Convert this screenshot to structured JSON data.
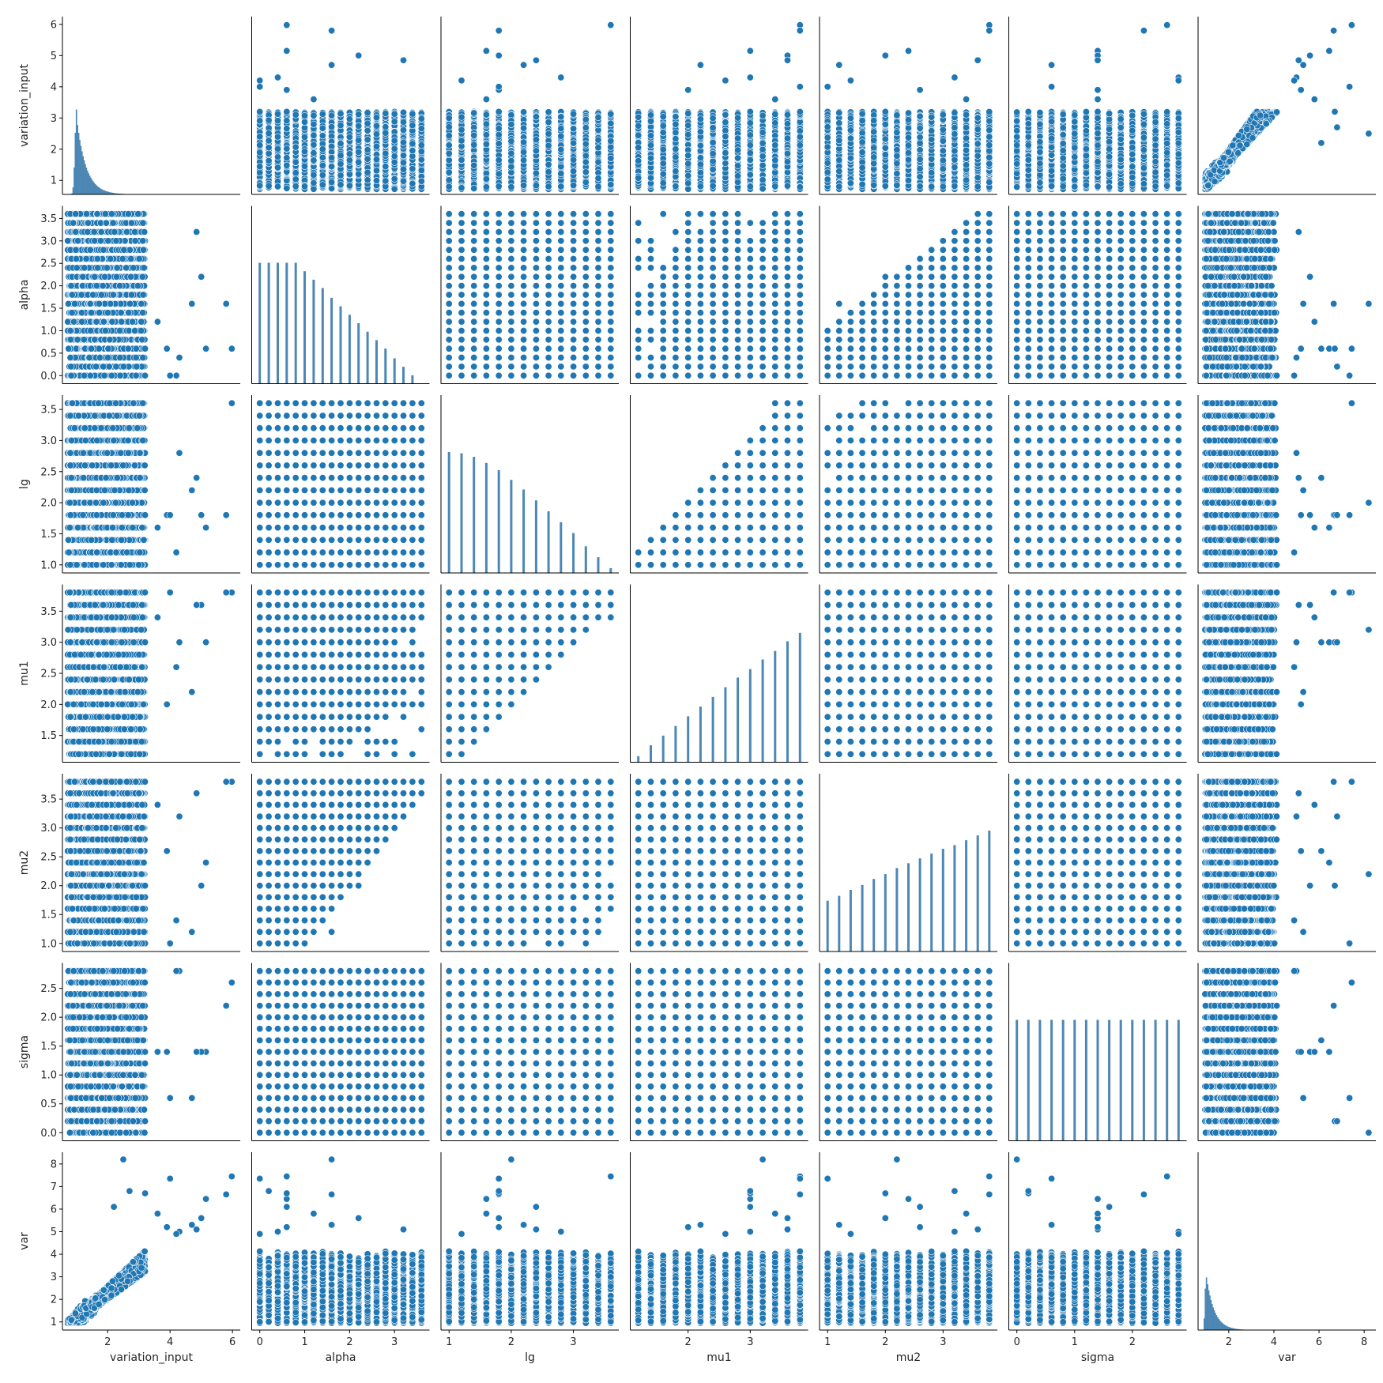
{
  "chart_data": {
    "type": "scatter",
    "kind": "pairplot",
    "variables": [
      "variation_input",
      "alpha",
      "lg",
      "mu1",
      "mu2",
      "sigma",
      "var"
    ],
    "diagonal": "histogram",
    "marker_color": "#1f77b4",
    "bar_color": "#4c87b5",
    "axes": {
      "variation_input": {
        "range": [
          0.55,
          6.25
        ],
        "ticks": [
          2,
          4,
          6
        ]
      },
      "alpha": {
        "range": [
          -0.18,
          3.78
        ],
        "ticks": [
          0,
          1,
          2,
          3
        ]
      },
      "lg": {
        "range": [
          0.87,
          3.73
        ],
        "ticks": [
          1,
          2,
          3
        ]
      },
      "mu1": {
        "range": [
          1.07,
          3.93
        ],
        "ticks": [
          2,
          3
        ]
      },
      "mu2": {
        "range": [
          0.86,
          3.94
        ],
        "ticks": [
          1,
          2,
          3
        ]
      },
      "sigma": {
        "range": [
          -0.14,
          2.94
        ],
        "ticks": [
          0,
          1,
          2
        ]
      },
      "var": {
        "range": [
          0.64,
          8.52
        ],
        "ticks": [
          2,
          4,
          6,
          8
        ]
      }
    },
    "row_axes": {
      "variation_input": {
        "ticks": [
          1,
          2,
          3,
          4,
          5,
          6
        ],
        "labels": [
          "1",
          "2",
          "3",
          "4",
          "5",
          "6"
        ]
      },
      "alpha": {
        "ticks": [
          0,
          0.5,
          1,
          1.5,
          2,
          2.5,
          3,
          3.5
        ],
        "labels": [
          "0.0",
          "0.5",
          "1.0",
          "1.5",
          "2.0",
          "2.5",
          "3.0",
          "3.5"
        ]
      },
      "lg": {
        "ticks": [
          1,
          1.5,
          2,
          2.5,
          3,
          3.5
        ],
        "labels": [
          "1.0",
          "1.5",
          "2.0",
          "2.5",
          "3.0",
          "3.5"
        ]
      },
      "mu1": {
        "ticks": [
          1.5,
          2,
          2.5,
          3,
          3.5
        ],
        "labels": [
          "1.5",
          "2.0",
          "2.5",
          "3.0",
          "3.5"
        ]
      },
      "mu2": {
        "ticks": [
          1,
          1.5,
          2,
          2.5,
          3,
          3.5
        ],
        "labels": [
          "1.0",
          "1.5",
          "2.0",
          "2.5",
          "3.0",
          "3.5"
        ]
      },
      "sigma": {
        "ticks": [
          0,
          0.5,
          1,
          1.5,
          2,
          2.5
        ],
        "labels": [
          "0.0",
          "0.5",
          "1.0",
          "1.5",
          "2.0",
          "2.5"
        ]
      },
      "var": {
        "ticks": [
          1,
          2,
          3,
          4,
          5,
          6,
          7,
          8
        ],
        "labels": [
          "1",
          "2",
          "3",
          "4",
          "5",
          "6",
          "7",
          "8"
        ]
      }
    },
    "grid_values": {
      "alpha": {
        "start": 0.0,
        "step": 0.2,
        "count": 19
      },
      "lg": {
        "start": 1.0,
        "step": 0.2,
        "count": 14
      },
      "mu1": {
        "start": 1.2,
        "step": 0.2,
        "count": 14
      },
      "mu2": {
        "start": 1.0,
        "step": 0.2,
        "count": 15
      },
      "sigma": {
        "start": 0.0,
        "step": 0.2,
        "count": 15
      }
    },
    "constraints": [
      "mu1 >= lg",
      "mu2 >= alpha"
    ],
    "diagonal_histograms": {
      "variation_input": {
        "shape": "right-skewed",
        "mode": 1.0,
        "min": 0.7,
        "max": 6.0
      },
      "alpha": {
        "bins": [
          0.0,
          0.2,
          0.4,
          0.6,
          0.8,
          1.0,
          1.2,
          1.4,
          1.6,
          1.8,
          2.0,
          2.2,
          2.4,
          2.6,
          2.8,
          3.0,
          3.2,
          3.4,
          3.6
        ],
        "relative_heights": [
          1.0,
          1.0,
          1.0,
          1.0,
          1.0,
          0.93,
          0.86,
          0.79,
          0.71,
          0.64,
          0.57,
          0.5,
          0.43,
          0.36,
          0.29,
          0.21,
          0.14,
          0.07,
          0.0
        ]
      },
      "lg": {
        "bins": [
          1.0,
          1.2,
          1.4,
          1.6,
          1.8,
          2.0,
          2.2,
          2.4,
          2.6,
          2.8,
          3.0,
          3.2,
          3.4,
          3.6
        ],
        "relative_heights": [
          1.0,
          0.99,
          0.96,
          0.91,
          0.85,
          0.77,
          0.69,
          0.6,
          0.51,
          0.42,
          0.33,
          0.22,
          0.13,
          0.04
        ]
      },
      "mu1": {
        "bins": [
          1.2,
          1.4,
          1.6,
          1.8,
          2.0,
          2.2,
          2.4,
          2.6,
          2.8,
          3.0,
          3.2,
          3.4,
          3.6,
          3.8
        ],
        "relative_heights": [
          0.05,
          0.14,
          0.22,
          0.3,
          0.38,
          0.46,
          0.54,
          0.62,
          0.7,
          0.77,
          0.85,
          0.92,
          1.0,
          1.07
        ]
      },
      "mu2": {
        "bins": [
          1.0,
          1.2,
          1.4,
          1.6,
          1.8,
          2.0,
          2.2,
          2.4,
          2.6,
          2.8,
          3.0,
          3.2,
          3.4,
          3.6,
          3.8
        ],
        "relative_heights": [
          0.42,
          0.46,
          0.51,
          0.55,
          0.6,
          0.64,
          0.69,
          0.73,
          0.77,
          0.81,
          0.85,
          0.88,
          0.92,
          0.96,
          1.0
        ]
      },
      "sigma": {
        "bins": [
          0.0,
          0.2,
          0.4,
          0.6,
          0.8,
          1.0,
          1.2,
          1.4,
          1.6,
          1.8,
          2.0,
          2.2,
          2.4,
          2.6,
          2.8
        ],
        "relative_heights": [
          1.0,
          1.0,
          1.0,
          1.0,
          1.0,
          1.0,
          1.0,
          1.0,
          1.0,
          1.0,
          1.0,
          1.0,
          1.0,
          1.0,
          1.0
        ]
      },
      "var": {
        "shape": "right-skewed",
        "mode": 1.0,
        "min": 0.9,
        "max": 8.2
      }
    },
    "notable_points": [
      {
        "variation_input": 5.98,
        "alpha": 0.6,
        "lg": 3.6,
        "mu1": 3.8,
        "mu2": 3.8,
        "sigma": 2.6,
        "var": 7.45
      },
      {
        "variation_input": 5.8,
        "alpha": 1.6,
        "lg": 1.8,
        "mu1": 3.8,
        "mu2": 3.8,
        "sigma": 2.2,
        "var": 6.65
      },
      {
        "variation_input": 5.15,
        "alpha": 0.6,
        "lg": 1.6,
        "mu1": 3.0,
        "mu2": 2.4,
        "sigma": 1.4,
        "var": 6.45
      },
      {
        "variation_input": 5.0,
        "alpha": 2.2,
        "lg": 1.8,
        "mu1": 3.6,
        "mu2": 2.0,
        "sigma": 1.4,
        "var": 5.6
      },
      {
        "variation_input": 4.85,
        "alpha": 3.2,
        "lg": 2.4,
        "mu1": 3.6,
        "mu2": 3.6,
        "sigma": 1.4,
        "var": 5.1
      },
      {
        "variation_input": 4.7,
        "alpha": 1.6,
        "lg": 2.2,
        "mu1": 2.2,
        "mu2": 1.2,
        "sigma": 0.6,
        "var": 5.3
      },
      {
        "variation_input": 4.3,
        "alpha": 0.4,
        "lg": 2.8,
        "mu1": 3.0,
        "mu2": 3.2,
        "sigma": 2.8,
        "var": 5.0
      },
      {
        "variation_input": 4.2,
        "alpha": 0.0,
        "lg": 1.2,
        "mu1": 2.6,
        "mu2": 1.4,
        "sigma": 2.8,
        "var": 4.9
      },
      {
        "variation_input": 3.9,
        "alpha": 0.6,
        "lg": 1.8,
        "mu1": 2.0,
        "mu2": 2.6,
        "sigma": 1.4,
        "var": 5.2
      },
      {
        "variation_input": 2.5,
        "alpha": 1.6,
        "lg": 2.0,
        "mu1": 3.2,
        "mu2": 2.2,
        "sigma": 0.0,
        "var": 8.2
      },
      {
        "variation_input": 4.0,
        "alpha": 0.0,
        "lg": 1.8,
        "mu1": 3.8,
        "mu2": 1.0,
        "sigma": 0.6,
        "var": 7.35
      },
      {
        "variation_input": 3.2,
        "alpha": 0.6,
        "lg": 1.8,
        "mu1": 3.0,
        "mu2": 2.0,
        "sigma": 0.2,
        "var": 6.7
      },
      {
        "variation_input": 2.7,
        "alpha": 0.2,
        "lg": 1.8,
        "mu1": 3.0,
        "mu2": 3.2,
        "sigma": 0.2,
        "var": 6.8
      },
      {
        "variation_input": 2.2,
        "alpha": 0.6,
        "lg": 2.4,
        "mu1": 3.0,
        "mu2": 2.6,
        "sigma": 1.6,
        "var": 6.1
      },
      {
        "variation_input": 3.6,
        "alpha": 1.2,
        "lg": 1.6,
        "mu1": 3.4,
        "mu2": 3.4,
        "sigma": 1.4,
        "var": 5.8
      }
    ]
  }
}
